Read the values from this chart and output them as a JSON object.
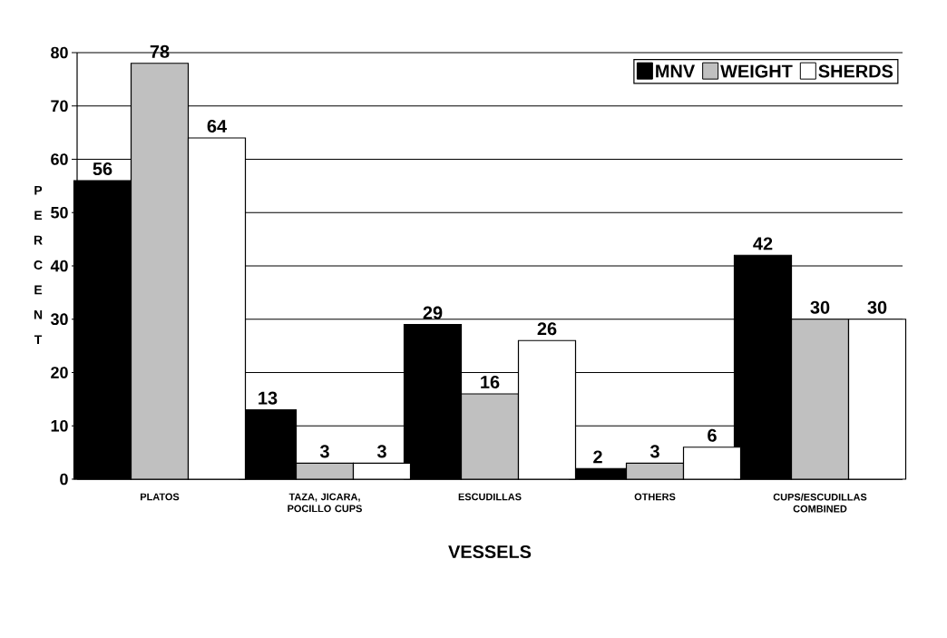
{
  "chart_data": {
    "type": "bar",
    "xlabel": "VESSELS",
    "ylabel": "PERCENT",
    "categories": [
      "PLATOS",
      "TAZA, JICARA, POCILLO CUPS",
      "ESCUDILLAS",
      "OTHERS",
      "CUPS/ESCUDILLAS COMBINED"
    ],
    "series": [
      {
        "name": "MNV",
        "color": "#000000",
        "values": [
          56,
          13,
          29,
          2,
          42
        ]
      },
      {
        "name": "WEIGHT",
        "color": "#c0c0c0",
        "values": [
          78,
          3,
          16,
          3,
          30
        ]
      },
      {
        "name": "SHERDS",
        "color": "#ffffff",
        "values": [
          64,
          3,
          26,
          6,
          30
        ]
      }
    ],
    "ylim": [
      0,
      80
    ],
    "yticks": [
      0,
      10,
      20,
      30,
      40,
      50,
      60,
      70,
      80
    ],
    "grid": "y",
    "legend": "top right",
    "data_labels": true
  }
}
